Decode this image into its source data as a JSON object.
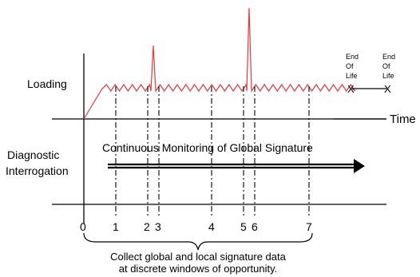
{
  "labels": {
    "loading": "Loading",
    "time": "Time",
    "diagnostic_line1": "Diagnostic",
    "diagnostic_line2": "Interrogation",
    "monitoring": "Continuous Monitoring of Global Signature",
    "collect_line1": "Collect global and local signature data",
    "collect_line2": "at discrete windows of opportunity."
  },
  "end_of_life": {
    "first": [
      "End",
      "Of",
      "Life"
    ],
    "second": [
      "End",
      "Of",
      "Life"
    ],
    "marker": "X"
  },
  "windows": [
    "0",
    "1",
    "2",
    "3",
    "4",
    "5",
    "6",
    "7"
  ],
  "colors": {
    "loading_curve": "#e8383a",
    "lines": "#000000",
    "text": "#000000"
  }
}
